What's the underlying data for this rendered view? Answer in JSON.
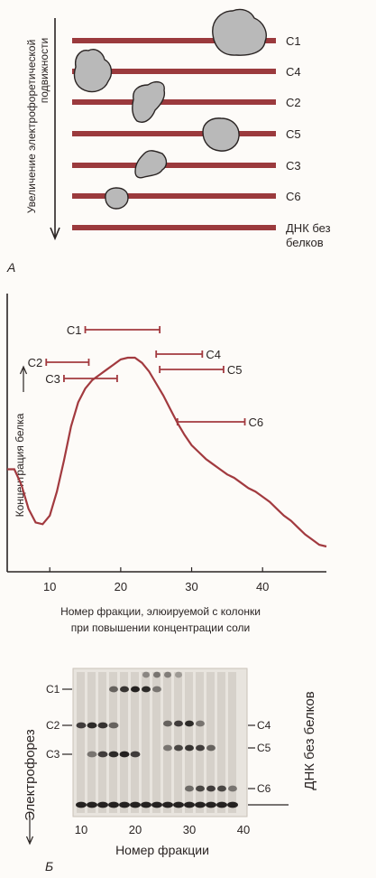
{
  "panel_a": {
    "letter": "A",
    "axis_label_line1": "Увеличение электрофоретической",
    "axis_label_line2": "подвижности",
    "rows": [
      {
        "label": "C1"
      },
      {
        "label": "C4"
      },
      {
        "label": "C2"
      },
      {
        "label": "C5"
      },
      {
        "label": "C3"
      },
      {
        "label": "C6"
      },
      {
        "label_line1": "ДНК без",
        "label_line2": "белков"
      }
    ],
    "colors": {
      "dna_line": "#9b3a3d",
      "protein": "#b9b9b9"
    }
  },
  "chart_data": {
    "type": "line",
    "ylabel": "Концентрация белка",
    "xlabel_line1": "Номер фракции, элюируемой с колонки",
    "xlabel_line2": "при повышении концентрации соли",
    "xlim": [
      4,
      49
    ],
    "x_ticks": [
      "10",
      "20",
      "30",
      "40"
    ],
    "series": [
      {
        "x": [
          4,
          5,
          6,
          7,
          8,
          9,
          10,
          11,
          12,
          13,
          14,
          15,
          16,
          17,
          18,
          19,
          20,
          21,
          22,
          23,
          24,
          25,
          26,
          27,
          28,
          29,
          30,
          31,
          32,
          33,
          34,
          35,
          36,
          37,
          38,
          39,
          40,
          41,
          42,
          43,
          44,
          45,
          46,
          47,
          48,
          49
        ],
        "y": [
          0.45,
          0.45,
          0.36,
          0.22,
          0.14,
          0.13,
          0.18,
          0.32,
          0.5,
          0.7,
          0.84,
          0.92,
          0.97,
          1.0,
          1.03,
          1.06,
          1.09,
          1.1,
          1.1,
          1.07,
          1.02,
          0.95,
          0.88,
          0.8,
          0.72,
          0.65,
          0.59,
          0.55,
          0.51,
          0.48,
          0.45,
          0.42,
          0.4,
          0.37,
          0.34,
          0.32,
          0.29,
          0.26,
          0.22,
          0.18,
          0.15,
          0.11,
          0.07,
          0.04,
          0.01,
          0.0
        ]
      }
    ],
    "ranges": [
      {
        "label": "C1",
        "start": 15,
        "end": 25.5
      },
      {
        "label": "C2",
        "start": 9.5,
        "end": 15.5
      },
      {
        "label": "C3",
        "start": 12,
        "end": 19.5
      },
      {
        "label": "C4",
        "start": 25,
        "end": 31.5
      },
      {
        "label": "C5",
        "start": 25.5,
        "end": 34.5
      },
      {
        "label": "C6",
        "start": 28,
        "end": 37.5
      }
    ],
    "colors": {
      "line": "#a23a3f"
    }
  },
  "panel_b": {
    "letter": "Б",
    "ylabel": "Электрофорез",
    "xlabel": "Номер фракции",
    "x_ticks": [
      "10",
      "20",
      "30",
      "40"
    ],
    "left_labels": [
      "C1",
      "C2",
      "C3"
    ],
    "right_labels": [
      "C4",
      "C5",
      "C6"
    ],
    "right_vertical_label": "ДНК без белков"
  }
}
